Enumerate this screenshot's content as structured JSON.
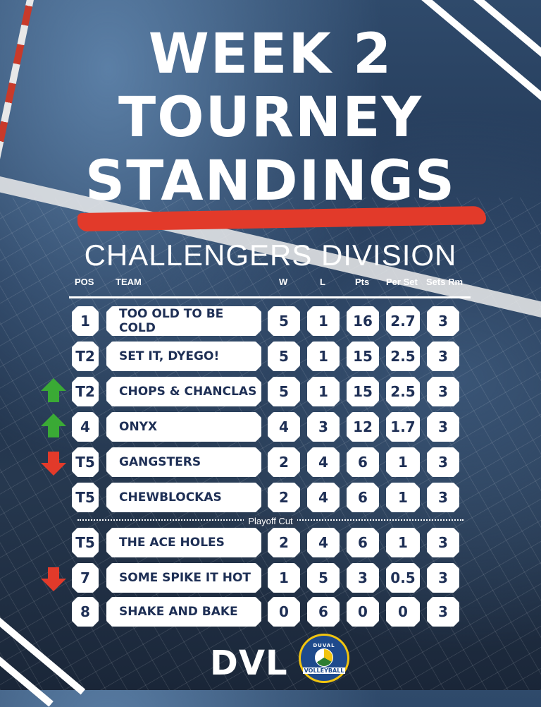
{
  "title": {
    "line1": "WEEK 2",
    "line2": "TOURNEY",
    "line3": "STANDINGS"
  },
  "division": "CHALLENGERS DIVISION",
  "headers": {
    "pos": "POS",
    "team": "TEAM",
    "w": "W",
    "l": "L",
    "pts": "Pts",
    "per_set": "Per Set",
    "sets_rm": "Sets Rm"
  },
  "rows": [
    {
      "pos": "1",
      "team": "TOO OLD TO BE COLD",
      "w": "5",
      "l": "1",
      "pts": "16",
      "per_set": "2.7",
      "sets_rm": "3",
      "trend": "none"
    },
    {
      "pos": "T2",
      "team": "SET IT, DYEGO!",
      "w": "5",
      "l": "1",
      "pts": "15",
      "per_set": "2.5",
      "sets_rm": "3",
      "trend": "none"
    },
    {
      "pos": "T2",
      "team": "CHOPS & CHANCLAS",
      "w": "5",
      "l": "1",
      "pts": "15",
      "per_set": "2.5",
      "sets_rm": "3",
      "trend": "up"
    },
    {
      "pos": "4",
      "team": "ONYX",
      "w": "4",
      "l": "3",
      "pts": "12",
      "per_set": "1.7",
      "sets_rm": "3",
      "trend": "up"
    },
    {
      "pos": "T5",
      "team": "GANGSTERS",
      "w": "2",
      "l": "4",
      "pts": "6",
      "per_set": "1",
      "sets_rm": "3",
      "trend": "down"
    },
    {
      "pos": "T5",
      "team": "CHEWBLOCKAS",
      "w": "2",
      "l": "4",
      "pts": "6",
      "per_set": "1",
      "sets_rm": "3",
      "trend": "none"
    },
    {
      "pos": "T5",
      "team": "THE ACE HOLES",
      "w": "2",
      "l": "4",
      "pts": "6",
      "per_set": "1",
      "sets_rm": "3",
      "trend": "none"
    },
    {
      "pos": "7",
      "team": "SOME SPIKE IT HOT",
      "w": "1",
      "l": "5",
      "pts": "3",
      "per_set": "0.5",
      "sets_rm": "3",
      "trend": "down"
    },
    {
      "pos": "8",
      "team": "SHAKE AND BAKE",
      "w": "0",
      "l": "6",
      "pts": "0",
      "per_set": "0",
      "sets_rm": "3",
      "trend": "none"
    }
  ],
  "playoff_cut_label": "Playoff Cut",
  "footer": {
    "brand": "DVL",
    "logo_top": "DUVAL",
    "logo_main": "VOLLEYBALL",
    "logo_icon": "volleyball-icon"
  },
  "colors": {
    "accent_red": "#e23a2a",
    "up_green": "#3aaa35",
    "text_navy": "#1e2f55"
  }
}
